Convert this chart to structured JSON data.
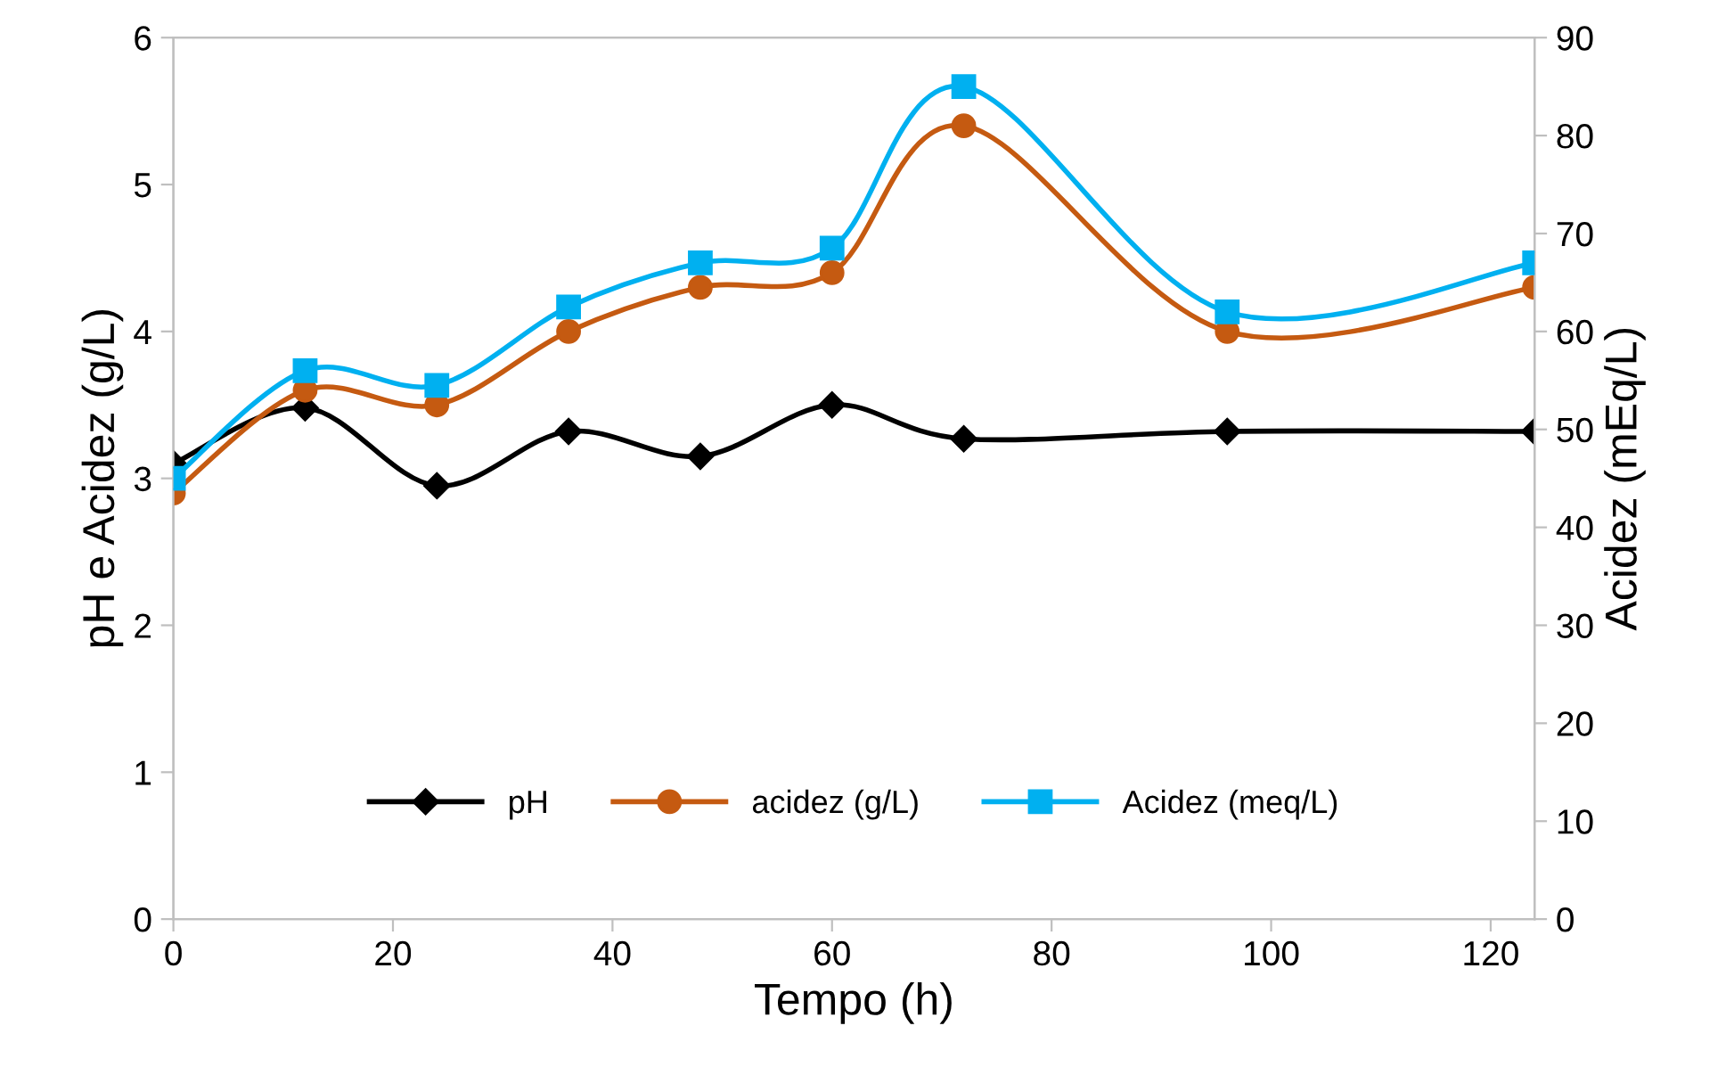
{
  "chart_data": {
    "type": "line",
    "xlabel": "Tempo (h)",
    "ylabel": "pH e Acidez (g/L)",
    "y2label": "Acidez (mEq/L)",
    "xlim": [
      0,
      124
    ],
    "xticks": [
      0,
      20,
      40,
      60,
      80,
      100,
      120
    ],
    "ylim": [
      0,
      6
    ],
    "yticks": [
      0,
      1,
      2,
      3,
      4,
      5,
      6
    ],
    "y2lim": [
      0,
      90
    ],
    "y2ticks": [
      0,
      10,
      20,
      30,
      40,
      50,
      60,
      70,
      80,
      90
    ],
    "grid": false,
    "legend": "bottom",
    "line_style": "solid",
    "series": [
      {
        "name": "pH",
        "color": "#000000",
        "marker": "diamond",
        "x": [
          0,
          12,
          24,
          36,
          48,
          60,
          72,
          96,
          124
        ],
        "values": [
          3.1,
          3.48,
          2.95,
          3.32,
          3.15,
          3.5,
          3.27,
          3.32,
          3.32
        ]
      },
      {
        "name": "acidez (g/L)",
        "color": "#c55a11",
        "marker": "circle",
        "x": [
          0,
          12,
          24,
          36,
          48,
          60,
          72,
          96,
          124
        ],
        "values": [
          2.9,
          3.6,
          3.5,
          4.0,
          4.3,
          4.4,
          5.4,
          4.0,
          4.3
        ]
      },
      {
        "name": "Acidez (meq/L)",
        "color": "#00b0f0",
        "marker": "square",
        "axis": "y2",
        "x": [
          0,
          12,
          24,
          36,
          48,
          60,
          72,
          96,
          124
        ],
        "values": [
          45,
          56,
          54.5,
          62.5,
          67,
          68.5,
          85,
          62,
          67
        ]
      }
    ]
  }
}
